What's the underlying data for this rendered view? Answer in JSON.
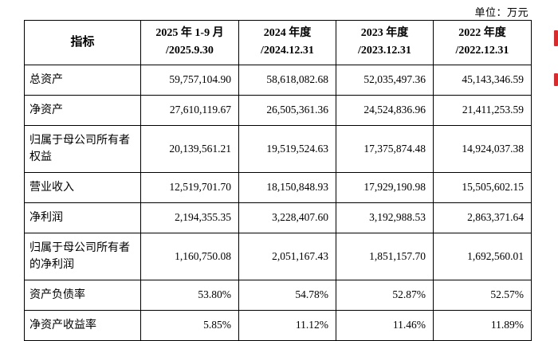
{
  "meta": {
    "unit_label": "单位：万元"
  },
  "colors": {
    "border": "#000000",
    "annotation_red": "#d92b2b"
  },
  "table": {
    "indicator_header": "指标",
    "column_headers": [
      {
        "line1": "2025 年 1-9 月",
        "line2": "/2025.9.30"
      },
      {
        "line1": "2024 年度",
        "line2": "/2024.12.31"
      },
      {
        "line1": "2023 年度",
        "line2": "/2023.12.31"
      },
      {
        "line1": "2022 年度",
        "line2": "/2022.12.31"
      }
    ],
    "rows": [
      {
        "label": "总资产",
        "values": [
          "59,757,104.90",
          "58,618,082.68",
          "52,035,497.36",
          "45,143,346.59"
        ]
      },
      {
        "label": "净资产",
        "values": [
          "27,610,119.67",
          "26,505,361.36",
          "24,524,836.96",
          "21,411,253.59"
        ]
      },
      {
        "label": "归属于母公司所有者权益",
        "values": [
          "20,139,561.21",
          "19,519,524.63",
          "17,375,874.48",
          "14,924,037.38"
        ]
      },
      {
        "label": "营业收入",
        "values": [
          "12,519,701.70",
          "18,150,848.93",
          "17,929,190.98",
          "15,505,602.15"
        ]
      },
      {
        "label": "净利润",
        "values": [
          "2,194,355.35",
          "3,228,407.60",
          "3,192,988.53",
          "2,863,371.64"
        ]
      },
      {
        "label": "归属于母公司所有者的净利润",
        "values": [
          "1,160,750.08",
          "2,051,167.43",
          "1,851,157.70",
          "1,692,560.01"
        ]
      },
      {
        "label": "资产负债率",
        "values": [
          "53.80%",
          "54.78%",
          "52.87%",
          "52.57%"
        ]
      },
      {
        "label": "净资产收益率",
        "values": [
          "5.85%",
          "11.12%",
          "11.46%",
          "11.89%"
        ]
      }
    ]
  }
}
